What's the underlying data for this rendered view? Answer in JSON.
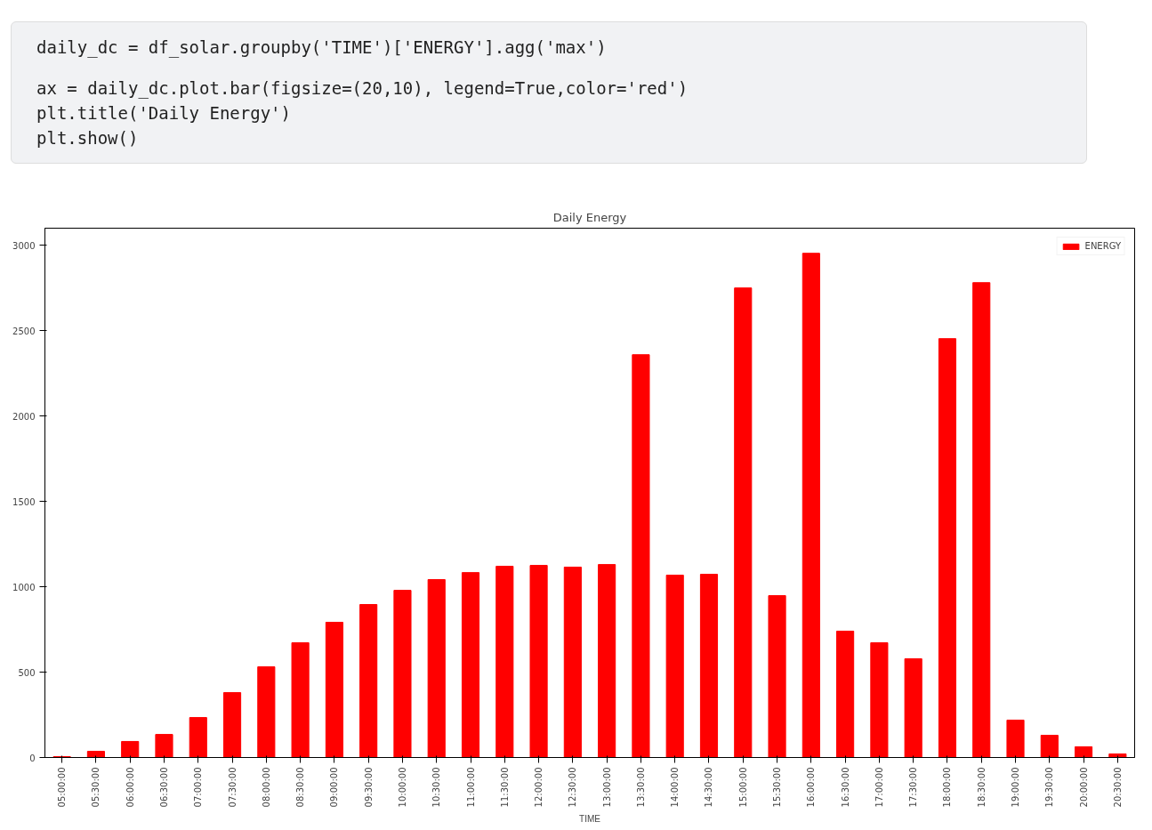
{
  "chart_data": {
    "type": "bar",
    "title": "Daily Energy",
    "xlabel": "TIME",
    "categories": [
      "05:00:00",
      "05:30:00",
      "06:00:00",
      "06:30:00",
      "07:00:00",
      "07:30:00",
      "08:00:00",
      "08:30:00",
      "09:00:00",
      "09:30:00",
      "10:00:00",
      "10:30:00",
      "11:00:00",
      "11:30:00",
      "12:00:00",
      "12:30:00",
      "13:00:00",
      "13:30:00",
      "14:00:00",
      "14:30:00",
      "15:00:00",
      "15:30:00",
      "16:00:00",
      "16:30:00",
      "17:00:00",
      "17:30:00",
      "18:00:00",
      "18:30:00",
      "19:00:00",
      "19:30:00",
      "20:00:00",
      "20:30:00"
    ],
    "series": [
      {
        "name": "ENERGY",
        "color": "#ff0000",
        "values": [
          5,
          36,
          94,
          135,
          234,
          380,
          531,
          672,
          792,
          896,
          979,
          1042,
          1083,
          1120,
          1125,
          1115,
          1130,
          2359,
          1068,
          1073,
          2750,
          948,
          2953,
          740,
          672,
          578,
          2453,
          2781,
          219,
          130,
          63,
          21
        ]
      }
    ],
    "ylim": [
      0,
      3100
    ],
    "yticks": [
      0,
      500,
      1000,
      1500,
      2000,
      2500,
      3000
    ],
    "legend": "top right",
    "grid": false,
    "annotations": [
      "daily_dc = df_solar.groupby('TIME')['ENERGY'].agg('max')",
      "ax = daily_dc.plot.bar(figsize=(20,10), legend=True,color='red')",
      "plt.title('Daily Energy')",
      "plt.show()"
    ]
  }
}
